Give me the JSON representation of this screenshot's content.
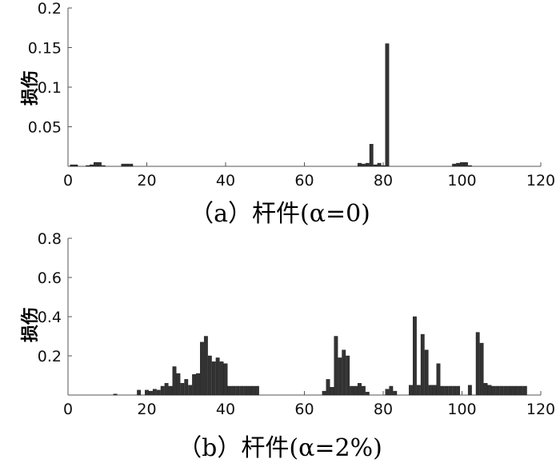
{
  "colors": {
    "bar": "#333333",
    "axis": "#555555",
    "text": "#111111"
  },
  "chart_data": [
    {
      "type": "bar",
      "panel": "a",
      "caption": "（a）杆件(α=0)",
      "ylabel": "损伤",
      "xlabel": "",
      "xlim": [
        0,
        120
      ],
      "ylim": [
        0,
        0.2
      ],
      "x_ticks": [
        0,
        20,
        40,
        60,
        80,
        100,
        120
      ],
      "y_ticks": [
        0.05,
        0.1,
        0.15,
        0.2
      ],
      "y_tick_labels": [
        "0.05",
        "0.1",
        "0.15",
        "0.2"
      ],
      "grid": false,
      "x": [
        1,
        2,
        3,
        4,
        5,
        6,
        7,
        8,
        9,
        10,
        11,
        12,
        13,
        14,
        15,
        16,
        17,
        18,
        19,
        20,
        21,
        22,
        23,
        24,
        25,
        26,
        27,
        28,
        29,
        30,
        31,
        32,
        33,
        34,
        35,
        36,
        37,
        38,
        39,
        40,
        41,
        42,
        43,
        44,
        45,
        46,
        47,
        48,
        49,
        50,
        51,
        52,
        53,
        54,
        55,
        56,
        57,
        58,
        59,
        60,
        61,
        62,
        63,
        64,
        65,
        66,
        67,
        68,
        69,
        70,
        71,
        72,
        73,
        74,
        75,
        76,
        77,
        78,
        79,
        80,
        81,
        82,
        83,
        84,
        85,
        86,
        87,
        88,
        89,
        90,
        91,
        92,
        93,
        94,
        95,
        96,
        97,
        98,
        99,
        100,
        101,
        102,
        103,
        104,
        105,
        106,
        107,
        108,
        109,
        110,
        111,
        112,
        113,
        114,
        115,
        116
      ],
      "values": [
        0.002,
        0.002,
        0,
        0,
        0.001,
        0.002,
        0.005,
        0.005,
        0.001,
        0,
        0,
        0,
        0,
        0.003,
        0.003,
        0.003,
        0,
        0,
        0,
        0,
        0,
        0,
        0,
        0,
        0,
        0,
        0,
        0,
        0,
        0,
        0,
        0,
        0,
        0,
        0,
        0,
        0,
        0,
        0,
        0,
        0,
        0,
        0,
        0,
        0,
        0,
        0,
        0,
        0,
        0,
        0,
        0,
        0,
        0,
        0,
        0,
        0,
        0,
        0,
        0,
        0,
        0,
        0,
        0,
        0,
        0,
        0,
        0,
        0,
        0,
        0,
        0,
        0,
        0.004,
        0.003,
        0.004,
        0.028,
        0.002,
        0.004,
        0.001,
        0.155,
        0,
        0,
        0,
        0,
        0,
        0,
        0,
        0,
        0,
        0,
        0,
        0,
        0,
        0,
        0,
        0,
        0.003,
        0.004,
        0.005,
        0.005,
        0.001,
        0,
        0,
        0,
        0,
        0,
        0,
        0,
        0,
        0,
        0,
        0,
        0,
        0,
        0
      ]
    },
    {
      "type": "bar",
      "panel": "b",
      "caption": "（b）杆件(α=2%)",
      "ylabel": "损伤",
      "xlabel": "",
      "xlim": [
        0,
        120
      ],
      "ylim": [
        0,
        0.8
      ],
      "x_ticks": [
        0,
        20,
        40,
        60,
        80,
        100,
        120
      ],
      "y_ticks": [
        0.2,
        0.4,
        0.6,
        0.8
      ],
      "y_tick_labels": [
        "0.2",
        "0.4",
        "0.6",
        "0.8"
      ],
      "grid": false,
      "x": [
        1,
        2,
        3,
        4,
        5,
        6,
        7,
        8,
        9,
        10,
        11,
        12,
        13,
        14,
        15,
        16,
        17,
        18,
        19,
        20,
        21,
        22,
        23,
        24,
        25,
        26,
        27,
        28,
        29,
        30,
        31,
        32,
        33,
        34,
        35,
        36,
        37,
        38,
        39,
        40,
        41,
        42,
        43,
        44,
        45,
        46,
        47,
        48,
        49,
        50,
        51,
        52,
        53,
        54,
        55,
        56,
        57,
        58,
        59,
        60,
        61,
        62,
        63,
        64,
        65,
        66,
        67,
        68,
        69,
        70,
        71,
        72,
        73,
        74,
        75,
        76,
        77,
        78,
        79,
        80,
        81,
        82,
        83,
        84,
        85,
        86,
        87,
        88,
        89,
        90,
        91,
        92,
        93,
        94,
        95,
        96,
        97,
        98,
        99,
        100,
        101,
        102,
        103,
        104,
        105,
        106,
        107,
        108,
        109,
        110,
        111,
        112,
        113,
        114,
        115,
        116
      ],
      "values": [
        0,
        0,
        0,
        0,
        0,
        0,
        0,
        0,
        0,
        0,
        0,
        0.005,
        0,
        0,
        0,
        0,
        0,
        0.025,
        0,
        0.025,
        0.02,
        0.03,
        0.025,
        0.045,
        0.06,
        0.045,
        0.145,
        0.11,
        0.06,
        0.08,
        0.05,
        0.105,
        0.11,
        0.27,
        0.3,
        0.2,
        0.17,
        0.19,
        0.17,
        0.16,
        0.045,
        0.045,
        0.045,
        0.045,
        0.045,
        0.045,
        0.045,
        0.045,
        0,
        0,
        0,
        0,
        0,
        0,
        0,
        0,
        0,
        0,
        0,
        0,
        0,
        0,
        0,
        0,
        0.02,
        0.08,
        0.04,
        0.3,
        0.19,
        0.23,
        0.2,
        0.045,
        0.045,
        0.06,
        0.045,
        0.015,
        0,
        0,
        0,
        0,
        0.03,
        0.045,
        0.02,
        0,
        0,
        0,
        0.05,
        0.4,
        0.05,
        0.31,
        0.23,
        0.05,
        0.05,
        0.16,
        0.045,
        0.045,
        0.045,
        0.045,
        0.045,
        0,
        0,
        0.05,
        0,
        0.32,
        0.265,
        0.06,
        0.05,
        0.045,
        0.045,
        0.045,
        0.045,
        0.045,
        0.045,
        0.045,
        0.045,
        0.045
      ]
    }
  ]
}
